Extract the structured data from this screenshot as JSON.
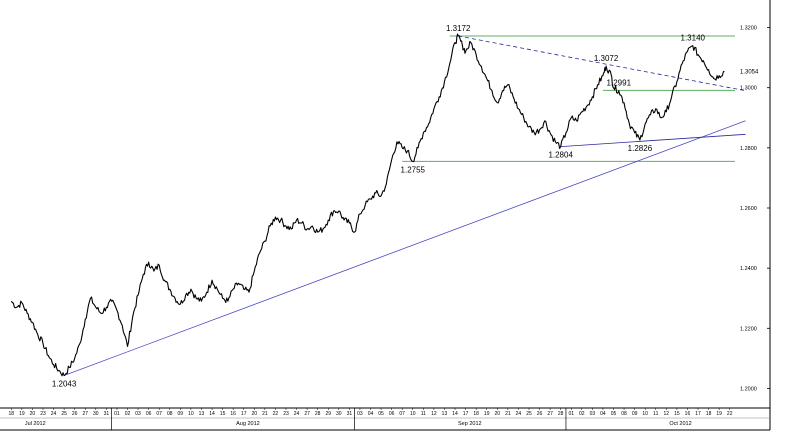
{
  "chart_data": {
    "type": "line",
    "title": "",
    "xlabel": "",
    "ylabel": "",
    "ylim": [
      1.1935,
      1.3265
    ],
    "y_ticks": [
      "1.2000",
      "1.2200",
      "1.2400",
      "1.2600",
      "1.2800",
      "1.3000",
      "1.3200"
    ],
    "y_tick_values": [
      1.2,
      1.22,
      1.24,
      1.26,
      1.28,
      1.3,
      1.32
    ],
    "current_value": "1.3054",
    "x_day_labels": [
      "18",
      "19",
      "20",
      "23",
      "24",
      "25",
      "26",
      "27",
      "30",
      "31",
      "01",
      "02",
      "03",
      "06",
      "07",
      "08",
      "09",
      "10",
      "13",
      "14",
      "15",
      "16",
      "17",
      "20",
      "21",
      "22",
      "23",
      "24",
      "27",
      "28",
      "29",
      "30",
      "31",
      "03",
      "04",
      "05",
      "06",
      "07",
      "10",
      "11",
      "12",
      "13",
      "14",
      "17",
      "18",
      "19",
      "20",
      "21",
      "24",
      "25",
      "26",
      "27",
      "28",
      "01",
      "02",
      "03",
      "04",
      "05",
      "08",
      "09",
      "10",
      "11",
      "12",
      "15",
      "16",
      "17",
      "18",
      "19",
      "22"
    ],
    "month_labels": [
      {
        "label": "Jul 2012",
        "day_index": 1
      },
      {
        "label": "Aug 2012",
        "day_index": 21
      },
      {
        "label": "Sep 2012",
        "day_index": 42
      },
      {
        "label": "Oct 2012",
        "day_index": 62
      }
    ],
    "month_separators": [
      10,
      33,
      53
    ],
    "series": [
      {
        "values": [
          [
            0,
            1.229
          ],
          [
            0.5,
            1.227
          ],
          [
            1,
            1.2285
          ],
          [
            1.5,
            1.225
          ],
          [
            2,
            1.222
          ],
          [
            2.5,
            1.218
          ],
          [
            3,
            1.215
          ],
          [
            3.5,
            1.211
          ],
          [
            4,
            1.208
          ],
          [
            4.5,
            1.206
          ],
          [
            5,
            1.2043
          ],
          [
            5.5,
            1.207
          ],
          [
            6,
            1.21
          ],
          [
            6.5,
            1.215
          ],
          [
            7,
            1.223
          ],
          [
            7.5,
            1.23
          ],
          [
            8,
            1.227
          ],
          [
            8.5,
            1.225
          ],
          [
            9,
            1.227
          ],
          [
            9.5,
            1.229
          ],
          [
            10,
            1.226
          ],
          [
            10.5,
            1.221
          ],
          [
            11,
            1.214
          ],
          [
            11.5,
            1.224
          ],
          [
            12,
            1.231
          ],
          [
            12.5,
            1.238
          ],
          [
            13,
            1.242
          ],
          [
            13.5,
            1.239
          ],
          [
            14,
            1.241
          ],
          [
            14.5,
            1.236
          ],
          [
            15,
            1.233
          ],
          [
            15.5,
            1.23
          ],
          [
            16,
            1.228
          ],
          [
            16.5,
            1.231
          ],
          [
            17,
            1.233
          ],
          [
            17.5,
            1.23
          ],
          [
            18,
            1.229
          ],
          [
            18.5,
            1.232
          ],
          [
            19,
            1.236
          ],
          [
            19.5,
            1.233
          ],
          [
            20,
            1.23
          ],
          [
            20.5,
            1.229
          ],
          [
            21,
            1.233
          ],
          [
            21.5,
            1.235
          ],
          [
            22,
            1.233
          ],
          [
            22.5,
            1.232
          ],
          [
            23,
            1.239
          ],
          [
            23.5,
            1.245
          ],
          [
            24,
            1.249
          ],
          [
            24.5,
            1.254
          ],
          [
            25,
            1.257
          ],
          [
            25.5,
            1.256
          ],
          [
            26,
            1.254
          ],
          [
            26.5,
            1.253
          ],
          [
            27,
            1.256
          ],
          [
            27.5,
            1.255
          ],
          [
            28,
            1.253
          ],
          [
            28.5,
            1.254
          ],
          [
            29,
            1.252
          ],
          [
            29.5,
            1.253
          ],
          [
            30,
            1.256
          ],
          [
            30.5,
            1.259
          ],
          [
            31,
            1.259
          ],
          [
            31.5,
            1.256
          ],
          [
            32,
            1.255
          ],
          [
            32.5,
            1.252
          ],
          [
            33,
            1.258
          ],
          [
            33.5,
            1.261
          ],
          [
            34,
            1.263
          ],
          [
            34.5,
            1.265
          ],
          [
            35,
            1.264
          ],
          [
            35.5,
            1.268
          ],
          [
            36,
            1.276
          ],
          [
            36.5,
            1.282
          ],
          [
            37,
            1.28
          ],
          [
            37.5,
            1.279
          ],
          [
            38,
            1.2755
          ],
          [
            38.5,
            1.28
          ],
          [
            39,
            1.285
          ],
          [
            39.5,
            1.288
          ],
          [
            40,
            1.293
          ],
          [
            40.5,
            1.297
          ],
          [
            41,
            1.302
          ],
          [
            41.5,
            1.308
          ],
          [
            42,
            1.315
          ],
          [
            42.3,
            1.3172
          ],
          [
            42.7,
            1.314
          ],
          [
            43,
            1.312
          ],
          [
            43.5,
            1.315
          ],
          [
            44,
            1.311
          ],
          [
            44.5,
            1.307
          ],
          [
            45,
            1.303
          ],
          [
            45.5,
            1.299
          ],
          [
            46,
            1.295
          ],
          [
            46.5,
            1.299
          ],
          [
            47,
            1.301
          ],
          [
            47.5,
            1.297
          ],
          [
            48,
            1.293
          ],
          [
            48.5,
            1.29
          ],
          [
            49,
            1.287
          ],
          [
            49.5,
            1.285
          ],
          [
            50,
            1.286
          ],
          [
            50.5,
            1.289
          ],
          [
            51,
            1.285
          ],
          [
            51.5,
            1.282
          ],
          [
            52,
            1.2804
          ],
          [
            52.5,
            1.285
          ],
          [
            53,
            1.29
          ],
          [
            53.5,
            1.289
          ],
          [
            54,
            1.292
          ],
          [
            54.5,
            1.294
          ],
          [
            55,
            1.297
          ],
          [
            55.5,
            1.301
          ],
          [
            56,
            1.304
          ],
          [
            56.3,
            1.3072
          ],
          [
            56.8,
            1.304
          ],
          [
            57,
            1.3
          ],
          [
            57.5,
            1.299
          ],
          [
            58,
            1.295
          ],
          [
            58.5,
            1.288
          ],
          [
            59,
            1.285
          ],
          [
            59.5,
            1.2826
          ],
          [
            60,
            1.288
          ],
          [
            60.5,
            1.291
          ],
          [
            61,
            1.293
          ],
          [
            61.5,
            1.29
          ],
          [
            62,
            1.292
          ],
          [
            62.5,
            1.297
          ],
          [
            63,
            1.302
          ],
          [
            63.5,
            1.308
          ],
          [
            64,
            1.312
          ],
          [
            64.5,
            1.314
          ],
          [
            65,
            1.311
          ],
          [
            65.5,
            1.309
          ],
          [
            66,
            1.306
          ],
          [
            66.5,
            1.303
          ],
          [
            67,
            1.304
          ],
          [
            67.5,
            1.3054
          ]
        ]
      }
    ],
    "annotations": [
      {
        "text": "1.2043",
        "x": 5.0,
        "y": 1.2043,
        "position": "below"
      },
      {
        "text": "1.2755",
        "x": 38.0,
        "y": 1.2755,
        "position": "below"
      },
      {
        "text": "1.3172",
        "x": 42.3,
        "y": 1.3172,
        "position": "above"
      },
      {
        "text": "1.2804",
        "x": 52.0,
        "y": 1.2804,
        "position": "below"
      },
      {
        "text": "1.3072",
        "x": 56.3,
        "y": 1.3072,
        "position": "above"
      },
      {
        "text": "1.2991",
        "x": 57.5,
        "y": 1.2991,
        "position": "above"
      },
      {
        "text": "1.2826",
        "x": 59.5,
        "y": 1.2826,
        "position": "below"
      },
      {
        "text": "1.3140",
        "x": 64.5,
        "y": 1.314,
        "position": "above"
      }
    ],
    "horizontal_levels": [
      {
        "y": 1.3172,
        "x_start": 41.5,
        "color": "#5fae5f"
      },
      {
        "y": 1.2991,
        "x_start": 56.0,
        "color": "#5fae5f"
      },
      {
        "y": 1.2755,
        "x_start": 37.0,
        "color": "#5fae5f"
      }
    ],
    "trendlines": [
      {
        "from": [
          5.0,
          1.2043
        ],
        "to": [
          69.5,
          1.289
        ],
        "color": "#4b4bc8",
        "style": "solid"
      },
      {
        "from": [
          52.0,
          1.2804
        ],
        "to": [
          69.5,
          1.2845
        ],
        "color": "#2a2a9a",
        "style": "solid"
      },
      {
        "from": [
          42.3,
          1.3172
        ],
        "to": [
          69.5,
          1.299
        ],
        "color": "#2a2a9a",
        "style": "dashed"
      }
    ],
    "colors": {
      "line": "#000000",
      "frame": "#000000",
      "background": "#ffffff"
    }
  }
}
